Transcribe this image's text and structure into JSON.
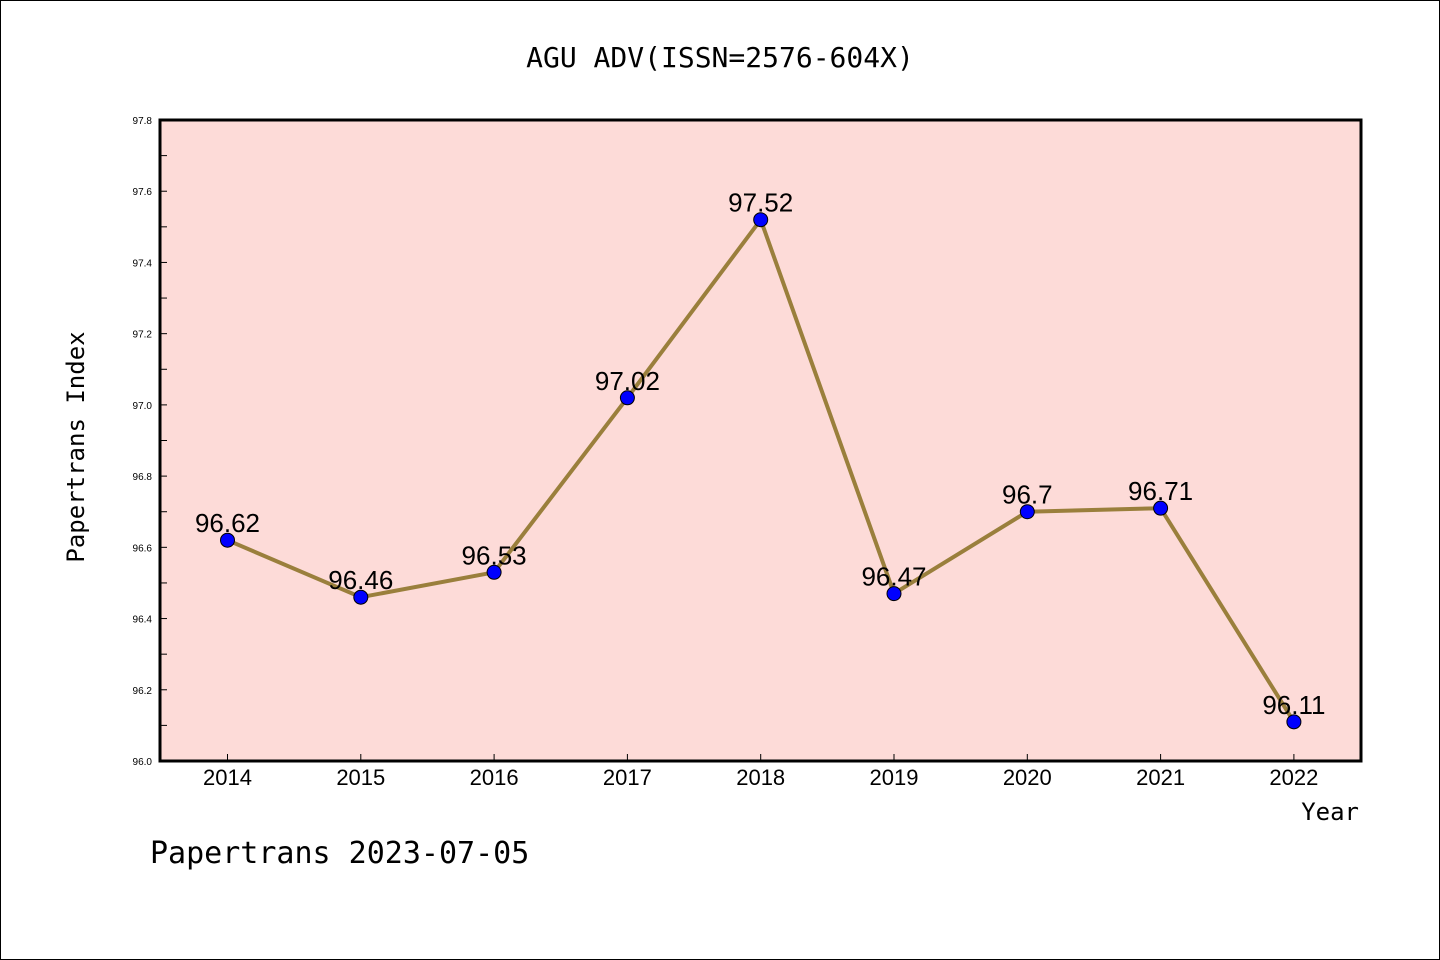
{
  "chart_data": {
    "type": "line",
    "title": "AGU ADV(ISSN=2576-604X)",
    "xlabel": "Year",
    "ylabel": "Papertrans Index",
    "categories": [
      "2014",
      "2015",
      "2016",
      "2017",
      "2018",
      "2019",
      "2020",
      "2021",
      "2022"
    ],
    "series": [
      {
        "values": [
          96.62,
          96.46,
          96.53,
          97.02,
          97.52,
          96.47,
          96.7,
          96.71,
          96.11
        ],
        "labels": [
          "96.62",
          "96.46",
          "96.53",
          "97.02",
          "97.52",
          "96.47",
          "96.7",
          "96.71",
          "96.11"
        ]
      }
    ],
    "ylim": [
      96.0,
      97.8
    ],
    "yticks": [
      "96.0",
      "96.2",
      "96.4",
      "96.6",
      "96.8",
      "97.0",
      "97.2",
      "97.4",
      "97.6",
      "97.8"
    ],
    "grid": false,
    "colors": {
      "plot_background": "#fddbd8",
      "line": "#9a7f3c",
      "marker": "#0000ff"
    }
  },
  "footer": {
    "text": "Papertrans 2023-07-05"
  }
}
